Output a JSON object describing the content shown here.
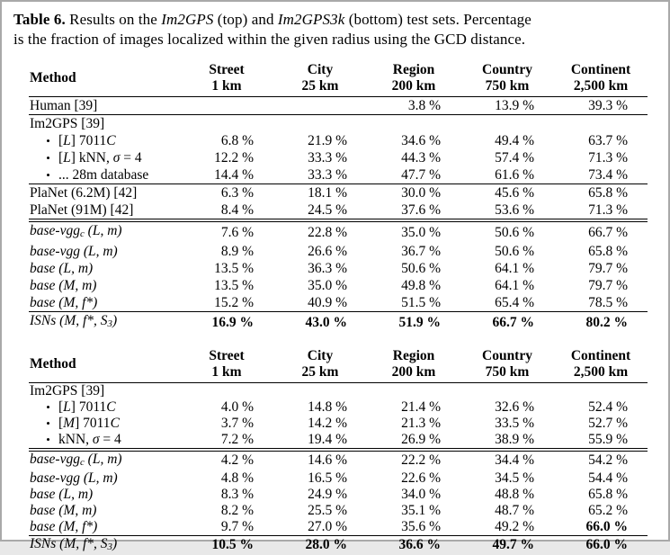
{
  "caption": {
    "lines": [
      [
        {
          "t": "Table 6.",
          "b": 1
        },
        {
          "t": " Results on the "
        },
        {
          "t": "Im2GPS",
          "i": 1
        },
        {
          "t": " (top) and "
        },
        {
          "t": "Im2GPS3k",
          "i": 1
        },
        {
          "t": " (bottom) test sets. Percentage"
        }
      ],
      [
        {
          "t": "is the fraction of images localized within the given radius using the GCD distance."
        }
      ]
    ]
  },
  "column_headers": [
    {
      "line1": "Method",
      "line2": ""
    },
    {
      "line1": "Street",
      "line2": "1 km"
    },
    {
      "line1": "City",
      "line2": "25 km"
    },
    {
      "line1": "Region",
      "line2": "200 km"
    },
    {
      "line1": "Country",
      "line2": "750 km"
    },
    {
      "line1": "Continent",
      "line2": "2,500 km"
    }
  ],
  "tables": [
    {
      "name": "Im2GPS test set (top)",
      "rows": [
        {
          "method": [
            {
              "t": "Human [39]"
            }
          ],
          "values": [
            "",
            "",
            "3.8 %",
            "13.9 %",
            "39.3 %"
          ],
          "rule": "single"
        },
        {
          "method": [
            {
              "t": "Im2GPS [39]"
            }
          ],
          "values": [
            "",
            "",
            "",
            "",
            ""
          ],
          "rule": "none"
        },
        {
          "bullet": true,
          "method": [
            {
              "t": "["
            },
            {
              "t": "L",
              "i": 1
            },
            {
              "t": "] 7011"
            },
            {
              "t": "C",
              "i": 1
            }
          ],
          "values": [
            "6.8 %",
            "21.9 %",
            "34.6 %",
            "49.4 %",
            "63.7 %"
          ],
          "rule": "none"
        },
        {
          "bullet": true,
          "method": [
            {
              "t": "["
            },
            {
              "t": "L",
              "i": 1
            },
            {
              "t": "] kNN, "
            },
            {
              "t": "σ",
              "i": 1
            },
            {
              "t": " = 4"
            }
          ],
          "values": [
            "12.2 %",
            "33.3 %",
            "44.3 %",
            "57.4 %",
            "71.3 %"
          ],
          "rule": "none"
        },
        {
          "bullet": true,
          "method": [
            {
              "t": "... 28m database"
            }
          ],
          "values": [
            "14.4 %",
            "33.3 %",
            "47.7 %",
            "61.6 %",
            "73.4 %"
          ],
          "rule": "single"
        },
        {
          "method": [
            {
              "t": "PlaNet (6.2M) [42]"
            }
          ],
          "values": [
            "6.3 %",
            "18.1 %",
            "30.0 %",
            "45.6 %",
            "65.8 %"
          ],
          "rule": "none"
        },
        {
          "method": [
            {
              "t": "PlaNet (91M) [42]"
            }
          ],
          "values": [
            "8.4 %",
            "24.5 %",
            "37.6 %",
            "53.6 %",
            "71.3 %"
          ],
          "rule": "double"
        },
        {
          "italic": true,
          "method": [
            {
              "t": "base-vgg"
            },
            {
              "t": "c",
              "sub": 1
            },
            {
              "t": " (L, m)"
            }
          ],
          "values": [
            "7.6 %",
            "22.8 %",
            "35.0 %",
            "50.6 %",
            "66.7 %"
          ],
          "rule": "none"
        },
        {
          "italic": true,
          "method": [
            {
              "t": "base-vgg (L, m)"
            }
          ],
          "values": [
            "8.9 %",
            "26.6 %",
            "36.7 %",
            "50.6 %",
            "65.8 %"
          ],
          "rule": "none"
        },
        {
          "italic": true,
          "method": [
            {
              "t": "base (L, m)"
            }
          ],
          "values": [
            "13.5 %",
            "36.3 %",
            "50.6 %",
            "64.1 %",
            "79.7 %"
          ],
          "rule": "none"
        },
        {
          "italic": true,
          "method": [
            {
              "t": "base (M, m)"
            }
          ],
          "values": [
            "13.5 %",
            "35.0 %",
            "49.8 %",
            "64.1 %",
            "79.7 %"
          ],
          "rule": "none"
        },
        {
          "italic": true,
          "method": [
            {
              "t": "base (M, f*)"
            }
          ],
          "values": [
            "15.2 %",
            "40.9 %",
            "51.5 %",
            "65.4 %",
            "78.5 %"
          ],
          "rule": "single"
        },
        {
          "italic": true,
          "bold_values": true,
          "method": [
            {
              "t": "ISNs (M, f*, S"
            },
            {
              "t": "3",
              "sub": 1
            },
            {
              "t": ")"
            }
          ],
          "values": [
            "16.9 %",
            "43.0 %",
            "51.9 %",
            "66.7 %",
            "80.2 %"
          ],
          "rule": "none"
        }
      ]
    },
    {
      "name": "Im2GPS3k test set (bottom)",
      "rows": [
        {
          "method": [
            {
              "t": "Im2GPS [39]"
            }
          ],
          "values": [
            "",
            "",
            "",
            "",
            ""
          ],
          "rule": "none"
        },
        {
          "bullet": true,
          "method": [
            {
              "t": "["
            },
            {
              "t": "L",
              "i": 1
            },
            {
              "t": "] 7011"
            },
            {
              "t": "C",
              "i": 1
            }
          ],
          "values": [
            "4.0 %",
            "14.8 %",
            "21.4 %",
            "32.6 %",
            "52.4 %"
          ],
          "rule": "none"
        },
        {
          "bullet": true,
          "method": [
            {
              "t": "["
            },
            {
              "t": "M",
              "i": 1
            },
            {
              "t": "] 7011"
            },
            {
              "t": "C",
              "i": 1
            }
          ],
          "values": [
            "3.7 %",
            "14.2 %",
            "21.3 %",
            "33.5 %",
            "52.7 %"
          ],
          "rule": "none"
        },
        {
          "bullet": true,
          "method": [
            {
              "t": "kNN, "
            },
            {
              "t": "σ",
              "i": 1
            },
            {
              "t": " = 4"
            }
          ],
          "values": [
            "7.2 %",
            "19.4 %",
            "26.9 %",
            "38.9 %",
            "55.9 %"
          ],
          "rule": "double"
        },
        {
          "italic": true,
          "method": [
            {
              "t": "base-vgg"
            },
            {
              "t": "c",
              "sub": 1
            },
            {
              "t": " (L, m)"
            }
          ],
          "values": [
            "4.2 %",
            "14.6 %",
            "22.2 %",
            "34.4 %",
            "54.2 %"
          ],
          "rule": "none"
        },
        {
          "italic": true,
          "method": [
            {
              "t": "base-vgg (L, m)"
            }
          ],
          "values": [
            "4.8 %",
            "16.5 %",
            "22.6 %",
            "34.5 %",
            "54.4 %"
          ],
          "rule": "none"
        },
        {
          "italic": true,
          "method": [
            {
              "t": "base (L, m)"
            }
          ],
          "values": [
            "8.3 %",
            "24.9 %",
            "34.0 %",
            "48.8 %",
            "65.8 %"
          ],
          "rule": "none"
        },
        {
          "italic": true,
          "method": [
            {
              "t": "base (M, m)"
            }
          ],
          "values": [
            "8.2 %",
            "25.5 %",
            "35.1 %",
            "48.7 %",
            "65.2 %"
          ],
          "rule": "none"
        },
        {
          "italic": true,
          "method": [
            {
              "t": "base (M, f*)"
            }
          ],
          "values": [
            "9.7 %",
            "27.0 %",
            "35.6 %",
            "49.2 %",
            "66.0 %"
          ],
          "bold_cells": [
            4
          ],
          "rule": "single"
        },
        {
          "italic": true,
          "bold_values": true,
          "method": [
            {
              "t": "ISNs (M, f*, S"
            },
            {
              "t": "3",
              "sub": 1
            },
            {
              "t": ")"
            }
          ],
          "values": [
            "10.5 %",
            "28.0 %",
            "36.6 %",
            "49.7 %",
            "66.0 %"
          ],
          "rule": "none"
        }
      ]
    }
  ]
}
